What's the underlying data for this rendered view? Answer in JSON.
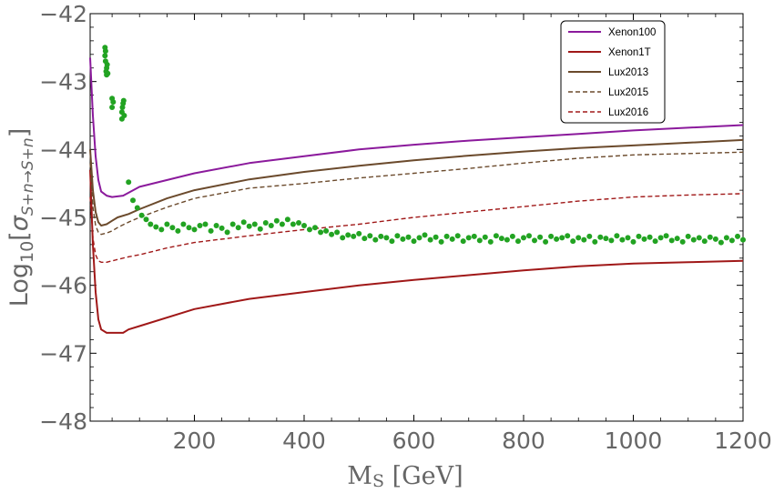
{
  "chart_data": {
    "type": "line",
    "title": "",
    "xlabel": "M_S [GeV]",
    "xlabel_parts": {
      "main": "M",
      "sub": "S",
      "rest": " [GeV]"
    },
    "ylabel": "Log_10[σ_{S+n→S+n}]",
    "ylabel_parts": {
      "pre": "Log",
      "sub1": "10",
      "open": "[",
      "sigma": "σ",
      "sub2": "S+n→S+n",
      "close": "]"
    },
    "xlim": [
      10,
      1200
    ],
    "ylim": [
      -48,
      -42
    ],
    "xticks": [
      200,
      400,
      600,
      800,
      1000,
      1200
    ],
    "xtick_labels": [
      "200",
      "400",
      "600",
      "800",
      "1000",
      "1200"
    ],
    "yticks": [
      -48,
      -47,
      -46,
      -45,
      -44,
      -43,
      -42
    ],
    "ytick_labels": [
      "-48",
      "-47",
      "-46",
      "-45",
      "-44",
      "-43",
      "-42"
    ],
    "grid": false,
    "legend_position": "top-right",
    "series": [
      {
        "name": "Xenon100",
        "color": "#8b1a9c",
        "dash": "solid",
        "x": [
          10,
          15,
          20,
          25,
          30,
          40,
          50,
          60,
          70,
          100,
          200,
          300,
          400,
          500,
          600,
          700,
          800,
          900,
          1000,
          1100,
          1200
        ],
        "y": [
          -42.65,
          -43.5,
          -44.1,
          -44.45,
          -44.62,
          -44.68,
          -44.7,
          -44.69,
          -44.68,
          -44.55,
          -44.35,
          -44.2,
          -44.1,
          -44.0,
          -43.93,
          -43.87,
          -43.82,
          -43.77,
          -43.72,
          -43.68,
          -43.64
        ]
      },
      {
        "name": "Xenon1T",
        "color": "#a01818",
        "dash": "solid",
        "x": [
          10,
          15,
          20,
          25,
          30,
          40,
          50,
          60,
          70,
          80,
          100,
          200,
          300,
          400,
          500,
          600,
          700,
          800,
          900,
          1000,
          1100,
          1200
        ],
        "y": [
          -44.3,
          -45.4,
          -46.1,
          -46.5,
          -46.65,
          -46.7,
          -46.7,
          -46.7,
          -46.7,
          -46.65,
          -46.6,
          -46.35,
          -46.2,
          -46.1,
          -46.0,
          -45.92,
          -45.85,
          -45.78,
          -45.72,
          -45.68,
          -45.66,
          -45.64
        ]
      },
      {
        "name": "Lux2013",
        "color": "#6b4a2c",
        "dash": "solid",
        "x": [
          10,
          15,
          20,
          25,
          30,
          40,
          50,
          60,
          80,
          100,
          150,
          200,
          300,
          400,
          500,
          600,
          700,
          800,
          900,
          1000,
          1100,
          1200
        ],
        "y": [
          -44.0,
          -44.6,
          -44.92,
          -45.07,
          -45.12,
          -45.1,
          -45.05,
          -45.0,
          -44.95,
          -44.88,
          -44.72,
          -44.6,
          -44.44,
          -44.33,
          -44.24,
          -44.16,
          -44.09,
          -44.03,
          -43.98,
          -43.94,
          -43.9,
          -43.86
        ]
      },
      {
        "name": "Lux2015",
        "color": "#6b4a2c",
        "dash": "dashed",
        "x": [
          10,
          15,
          20,
          25,
          30,
          40,
          50,
          60,
          80,
          100,
          150,
          200,
          300,
          400,
          500,
          600,
          700,
          800,
          900,
          1000,
          1100,
          1200
        ],
        "y": [
          -44.2,
          -44.85,
          -45.12,
          -45.22,
          -45.25,
          -45.23,
          -45.2,
          -45.15,
          -45.07,
          -45.0,
          -44.85,
          -44.72,
          -44.57,
          -44.5,
          -44.42,
          -44.35,
          -44.28,
          -44.2,
          -44.13,
          -44.08,
          -44.06,
          -44.04
        ]
      },
      {
        "name": "Lux2016",
        "color": "#a01818",
        "dash": "dashed",
        "x": [
          10,
          15,
          20,
          25,
          30,
          40,
          50,
          60,
          80,
          100,
          150,
          200,
          300,
          400,
          500,
          600,
          700,
          800,
          900,
          1000,
          1100,
          1200
        ],
        "y": [
          -44.7,
          -45.3,
          -45.55,
          -45.64,
          -45.66,
          -45.66,
          -45.64,
          -45.62,
          -45.58,
          -45.55,
          -45.45,
          -45.37,
          -45.27,
          -45.18,
          -45.1,
          -45.0,
          -44.92,
          -44.84,
          -44.76,
          -44.7,
          -44.67,
          -44.65
        ]
      }
    ],
    "points": {
      "color": "#22a322",
      "x": [
        37,
        37,
        38,
        38,
        39,
        40,
        40,
        41,
        42,
        50,
        50,
        52,
        68,
        68,
        69,
        70,
        71,
        72,
        80,
        88,
        96,
        104,
        112,
        120,
        130,
        140,
        150,
        160,
        170,
        180,
        190,
        200,
        210,
        220,
        230,
        240,
        250,
        260,
        270,
        280,
        290,
        300,
        310,
        320,
        330,
        340,
        350,
        360,
        370,
        380,
        390,
        400,
        410,
        420,
        430,
        440,
        450,
        460,
        470,
        480,
        490,
        500,
        510,
        520,
        530,
        540,
        550,
        560,
        570,
        580,
        590,
        600,
        610,
        620,
        630,
        640,
        650,
        660,
        670,
        680,
        690,
        700,
        710,
        720,
        730,
        740,
        750,
        760,
        770,
        780,
        790,
        800,
        810,
        820,
        830,
        840,
        850,
        860,
        870,
        880,
        890,
        900,
        910,
        920,
        930,
        940,
        950,
        960,
        970,
        980,
        990,
        1000,
        1010,
        1020,
        1030,
        1040,
        1050,
        1060,
        1070,
        1080,
        1090,
        1100,
        1110,
        1120,
        1130,
        1140,
        1150,
        1160,
        1170,
        1180,
        1190,
        1200
      ],
      "y": [
        -42.5,
        -42.62,
        -42.55,
        -42.7,
        -42.85,
        -42.9,
        -42.8,
        -42.75,
        -42.88,
        -43.25,
        -43.38,
        -43.3,
        -43.55,
        -43.45,
        -43.38,
        -43.32,
        -43.28,
        -43.5,
        -44.48,
        -44.75,
        -44.86,
        -44.97,
        -45.03,
        -45.1,
        -45.14,
        -45.18,
        -45.1,
        -45.15,
        -45.2,
        -45.1,
        -45.15,
        -45.18,
        -45.12,
        -45.1,
        -45.2,
        -45.12,
        -45.16,
        -45.22,
        -45.1,
        -45.15,
        -45.07,
        -45.13,
        -45.1,
        -45.17,
        -45.08,
        -45.12,
        -45.05,
        -45.1,
        -45.03,
        -45.1,
        -45.08,
        -45.12,
        -45.18,
        -45.15,
        -45.22,
        -45.2,
        -45.25,
        -45.22,
        -45.3,
        -45.26,
        -45.28,
        -45.24,
        -45.31,
        -45.27,
        -45.33,
        -45.28,
        -45.3,
        -45.35,
        -45.27,
        -45.32,
        -45.29,
        -45.35,
        -45.3,
        -45.26,
        -45.33,
        -45.29,
        -45.36,
        -45.28,
        -45.32,
        -45.27,
        -45.35,
        -45.3,
        -45.28,
        -45.34,
        -45.29,
        -45.36,
        -45.27,
        -45.31,
        -45.33,
        -45.28,
        -45.35,
        -45.3,
        -45.27,
        -45.34,
        -45.29,
        -45.36,
        -45.28,
        -45.32,
        -45.3,
        -45.27,
        -45.35,
        -45.3,
        -45.33,
        -45.28,
        -45.36,
        -45.29,
        -45.31,
        -45.34,
        -45.27,
        -45.33,
        -45.3,
        -45.36,
        -45.28,
        -45.32,
        -45.29,
        -45.35,
        -45.3,
        -45.27,
        -45.34,
        -45.31,
        -45.36,
        -45.28,
        -45.33,
        -45.3,
        -45.35,
        -45.29,
        -45.32,
        -45.37,
        -45.3,
        -45.34,
        -45.28,
        -45.33
      ]
    }
  }
}
